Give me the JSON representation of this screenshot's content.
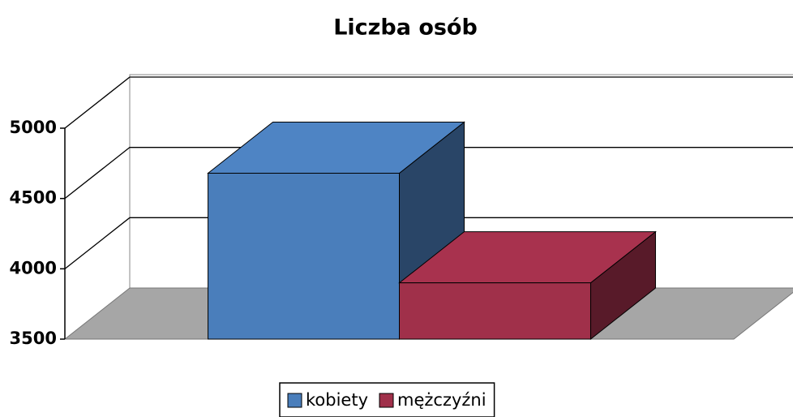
{
  "chart_data": {
    "type": "bar3d",
    "title": "Liczba osób",
    "categories": [
      null
    ],
    "series": [
      {
        "name": "kobiety",
        "color": "#4a7ebb",
        "values": [
          4680
        ]
      },
      {
        "name": "mężczyźni",
        "color": "#a0304a",
        "values": [
          3900
        ]
      }
    ],
    "ylim": [
      3500,
      5000
    ],
    "yticks": [
      3500,
      4000,
      4500,
      5000
    ],
    "grid": true,
    "legend": "bottom"
  }
}
